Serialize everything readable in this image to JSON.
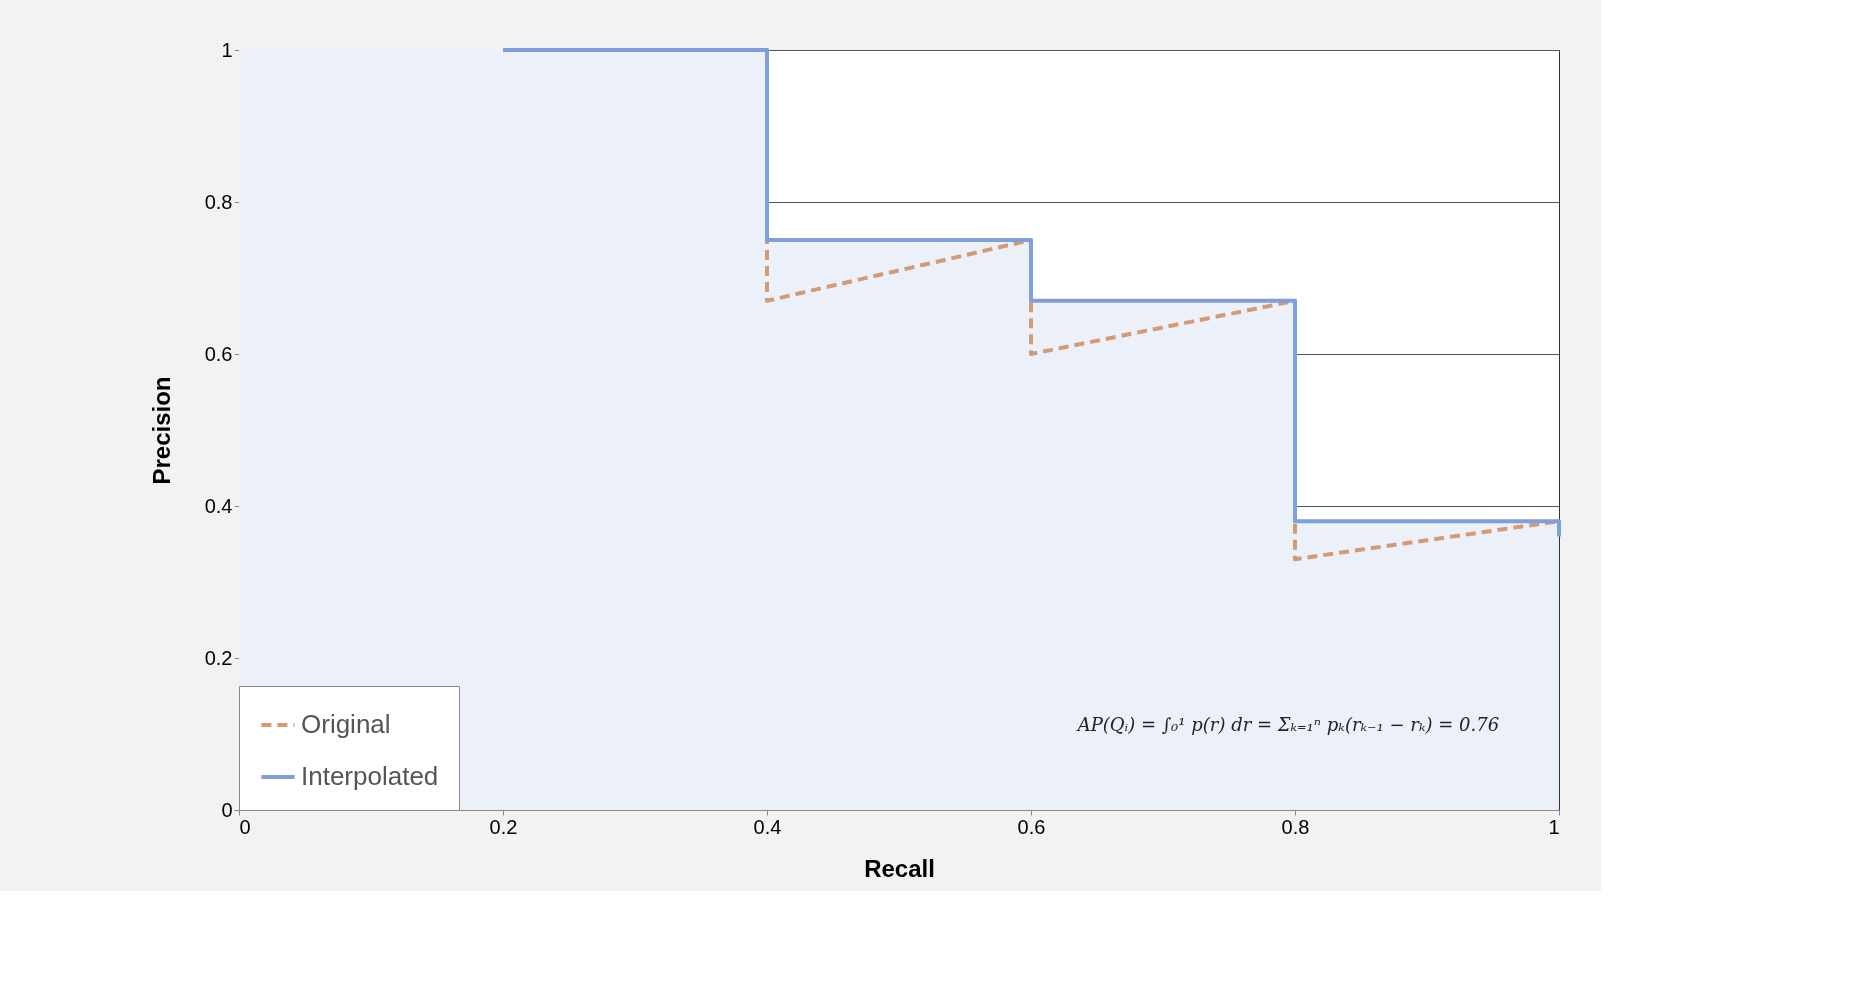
{
  "chart_data": {
    "type": "line",
    "xlabel": "Recall",
    "ylabel": "Precision",
    "series": [
      {
        "type": "area",
        "color": "#ecf0f8",
        "x": [
          0,
          0.4,
          0.4,
          0.6,
          0.6,
          0.8,
          0.8,
          1
        ],
        "values": [
          1,
          1,
          0.75,
          0.75,
          0.67,
          0.67,
          0.38,
          0.38
        ]
      },
      {
        "name": "Original",
        "line_style": "dashed",
        "color": "#d49a74",
        "x": [
          0.2,
          0.4,
          0.4,
          0.6,
          0.6,
          0.8,
          0.8,
          1
        ],
        "values": [
          1,
          1,
          0.67,
          0.75,
          0.6,
          0.67,
          0.33,
          0.38
        ]
      },
      {
        "name": "Interpolated",
        "line_style": "solid",
        "color": "#7f9fdc",
        "x": [
          0.2,
          0.4,
          0.4,
          0.6,
          0.6,
          0.8,
          0.8,
          1,
          1
        ],
        "values": [
          1,
          1,
          0.75,
          0.75,
          0.67,
          0.67,
          0.38,
          0.38,
          0.36
        ]
      }
    ],
    "xlim": [
      0,
      1
    ],
    "ylim": [
      0,
      1
    ],
    "xticks": [
      0,
      0.2,
      0.4,
      0.6,
      0.8,
      1
    ],
    "yticks": [
      0,
      0.2,
      0.4,
      0.6,
      0.8,
      1
    ],
    "grid": "y",
    "legend": "bottom left",
    "marker": "none",
    "annotations": [
      "AP(Qᵢ) = ∫₀¹ p(r) dr = Σₖ₌₁ⁿ pₖ(rₖ₋₁ − rₖ) = 0.76"
    ]
  }
}
